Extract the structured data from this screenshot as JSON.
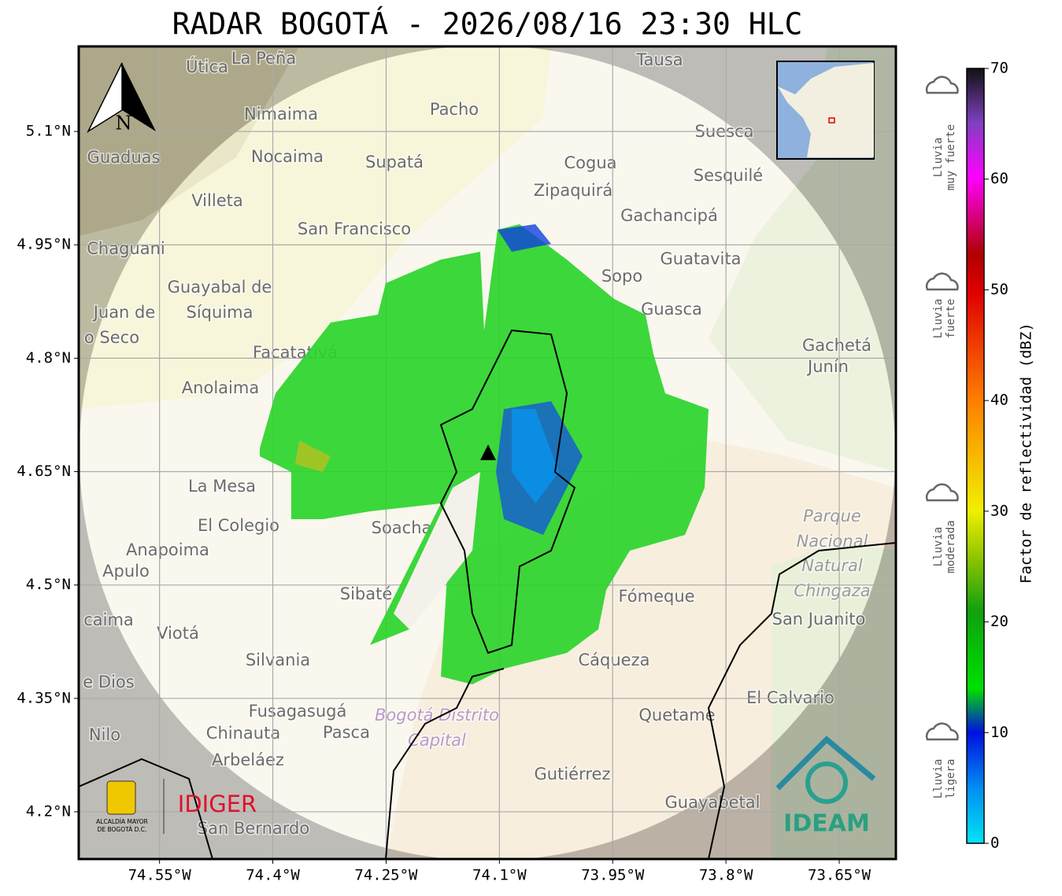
{
  "title": "RADAR BOGOTÁ - 2026/08/16 23:30 HLC",
  "map": {
    "xlim": [
      -74.657,
      -73.575
    ],
    "ylim": [
      4.1375,
      5.2125
    ],
    "xticks": [
      {
        "value": -74.55,
        "label": "74.55°W"
      },
      {
        "value": -74.4,
        "label": "74.4°W"
      },
      {
        "value": -74.25,
        "label": "74.25°W"
      },
      {
        "value": -74.1,
        "label": "74.1°W"
      },
      {
        "value": -73.95,
        "label": "73.95°W"
      },
      {
        "value": -73.8,
        "label": "73.8°W"
      },
      {
        "value": -73.65,
        "label": "73.65°W"
      }
    ],
    "yticks": [
      {
        "value": 5.1,
        "label": "5.1°N"
      },
      {
        "value": 4.95,
        "label": "4.95°N"
      },
      {
        "value": 4.8,
        "label": "4.8°N"
      },
      {
        "value": 4.65,
        "label": "4.65°N"
      },
      {
        "value": 4.5,
        "label": "4.5°N"
      },
      {
        "value": 4.35,
        "label": "4.35°N"
      },
      {
        "value": 4.2,
        "label": "4.2°N"
      }
    ],
    "north_label": "N",
    "places": [
      "Útica",
      "La Peña",
      "Tausa",
      "Pacho",
      "Nimaima",
      "Guaduas",
      "Nocaima",
      "Supatá",
      "Cogua",
      "Suesca",
      "Sesquilé",
      "Zipaquirá",
      "Villeta",
      "Gachancipá",
      "San Francisco",
      "Chaguani",
      "Guatavita",
      "Sopo",
      "Guayabal de",
      "Síquima",
      "Juan de",
      "o Seco",
      "Guasca",
      "Facatativá",
      "Gachetá",
      "Junín",
      "Anolaima",
      "La Mesa",
      "El Colegio",
      "Soacha",
      "Anapoima",
      "Apulo",
      "Parque",
      "Nacional",
      "Natural",
      "Chingaza",
      "Fómeque",
      "Sibaté",
      "San Juanito",
      "caima",
      "Viotá",
      "Silvania",
      "Cáqueza",
      "e Dios",
      "El Calvario",
      "Fusagasugá",
      "Bogotá Distrito",
      "Capital",
      "Quetame",
      "Nilo",
      "Chinauta",
      "Pasca",
      "Arbeláez",
      "Gutiérrez",
      "Guayabetal",
      "San Bernardo"
    ]
  },
  "colorbar": {
    "label": "Factor de reflectividad (dBZ)",
    "lim": [
      0,
      70
    ],
    "ticks": [
      0,
      10,
      20,
      30,
      40,
      50,
      60,
      70
    ],
    "categories": [
      [
        "Lluvia",
        "muy fuerte"
      ],
      [
        "Lluvia",
        "fuerte"
      ],
      [
        "Lluvia",
        "moderada"
      ],
      [
        "Lluvia",
        "ligera"
      ]
    ]
  },
  "logos": {
    "alcaldia": [
      "ALCALDÍA MAYOR",
      "DE BOGOTÁ D.C."
    ],
    "idiger": "IDIGER",
    "ideam": "IDEAM"
  }
}
